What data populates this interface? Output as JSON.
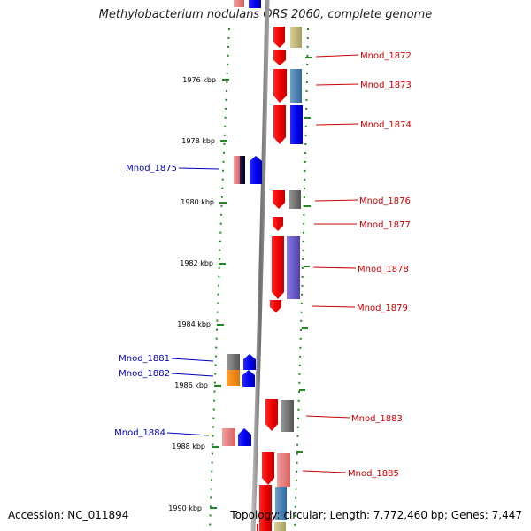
{
  "title": "Methylobacterium nodulans ORS 2060, complete genome",
  "footer": {
    "accession": "Accession: NC_011894",
    "topology": "Topology: circular; Length: 7,772,460 bp; Genes: 7,447"
  },
  "colors": {
    "forward_label": "#cc0000",
    "reverse_label": "#0000bb",
    "ruler": "#228822",
    "backbone": "#888888"
  },
  "scale_labels": [
    "1976 kbp",
    "1978 kbp",
    "1980 kbp",
    "1982 kbp",
    "1984 kbp",
    "1986 kbp",
    "1988 kbp",
    "1990 kbp"
  ],
  "genes": [
    {
      "name": "Mnod_1872",
      "strand": "forward"
    },
    {
      "name": "Mnod_1873",
      "strand": "forward"
    },
    {
      "name": "Mnod_1874",
      "strand": "forward"
    },
    {
      "name": "Mnod_1875",
      "strand": "reverse"
    },
    {
      "name": "Mnod_1876",
      "strand": "forward"
    },
    {
      "name": "Mnod_1877",
      "strand": "forward"
    },
    {
      "name": "Mnod_1878",
      "strand": "forward"
    },
    {
      "name": "Mnod_1879",
      "strand": "forward"
    },
    {
      "name": "Mnod_1881",
      "strand": "reverse"
    },
    {
      "name": "Mnod_1882",
      "strand": "reverse"
    },
    {
      "name": "Mnod_1883",
      "strand": "forward"
    },
    {
      "name": "Mnod_1884",
      "strand": "reverse"
    },
    {
      "name": "Mnod_1885",
      "strand": "forward"
    }
  ]
}
